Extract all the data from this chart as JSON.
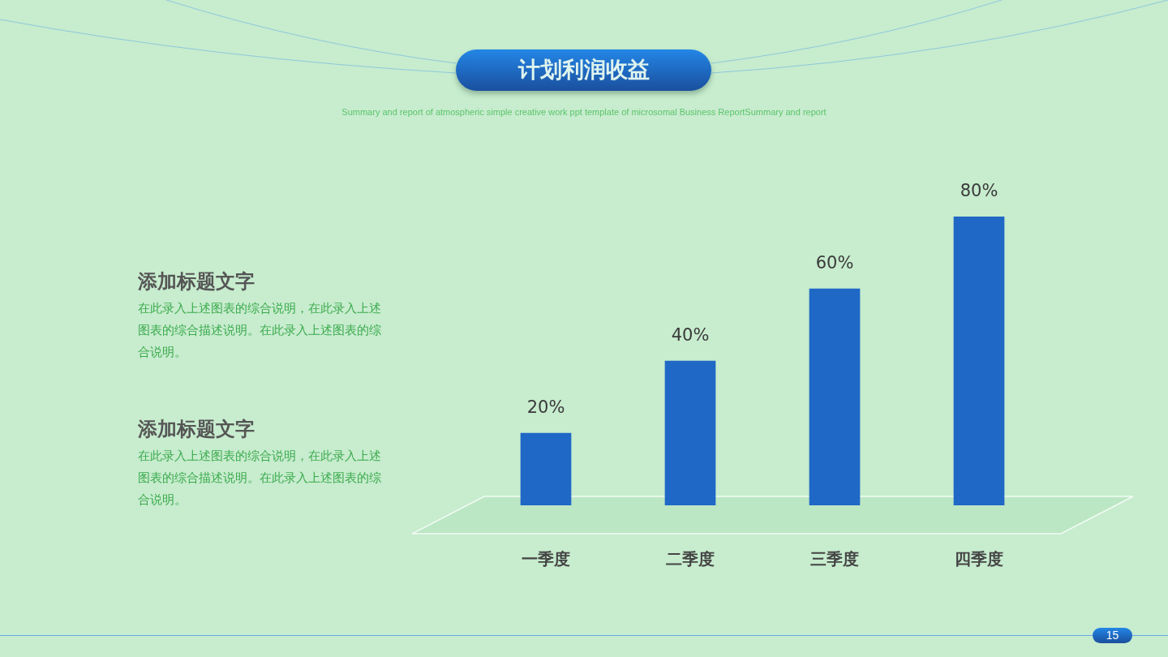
{
  "chart_data": {
    "type": "bar",
    "title": "计划利润收益",
    "subtitle": "Summary and report of atmospheric simple creative work ppt template of microsomal Business ReportSummary and report",
    "categories": [
      "一季度",
      "二季度",
      "三季度",
      "四季度"
    ],
    "values": [
      20,
      40,
      60,
      80
    ],
    "value_labels": [
      "20%",
      "40%",
      "60%",
      "80%"
    ],
    "color": "#1f68c6",
    "annotations": [
      "添加标题文字",
      "在此录入上述图表的综合说明，在此录入上述图表的综合描述说明。在此录入上述图表的综合说明。",
      "添加标题文字",
      "在此录入上述图表的综合说明，在此录入上述图表的综合描述说明。在此录入上述图表的综合说明。",
      "15"
    ]
  }
}
